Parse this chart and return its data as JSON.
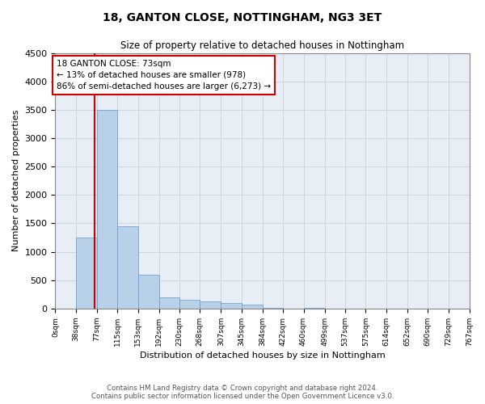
{
  "title": "18, GANTON CLOSE, NOTTINGHAM, NG3 3ET",
  "subtitle": "Size of property relative to detached houses in Nottingham",
  "xlabel": "Distribution of detached houses by size in Nottingham",
  "ylabel": "Number of detached properties",
  "annotation_text": "18 GANTON CLOSE: 73sqm\n← 13% of detached houses are smaller (978)\n86% of semi-detached houses are larger (6,273) →",
  "footer_line1": "Contains HM Land Registry data © Crown copyright and database right 2024.",
  "footer_line2": "Contains public sector information licensed under the Open Government Licence v3.0.",
  "bar_values": [
    0,
    1250,
    3500,
    1450,
    600,
    200,
    150,
    130,
    100,
    70,
    20,
    0,
    20,
    0,
    5,
    0,
    0,
    0,
    0,
    0
  ],
  "bin_edges": [
    0,
    38,
    77,
    115,
    153,
    192,
    230,
    268,
    307,
    345,
    384,
    422,
    460,
    499,
    537,
    575,
    614,
    652,
    690,
    729,
    767
  ],
  "property_size": 73,
  "ylim": [
    0,
    4500
  ],
  "yticks": [
    0,
    500,
    1000,
    1500,
    2000,
    2500,
    3000,
    3500,
    4000,
    4500
  ],
  "bar_color": "#b8d0e8",
  "bar_edge_color": "#6699cc",
  "bar_alpha": 1.0,
  "grid_color": "#c8d0d8",
  "annotation_box_color": "#cc0000",
  "vline_color": "#cc0000",
  "bg_color": "#e8eef5"
}
